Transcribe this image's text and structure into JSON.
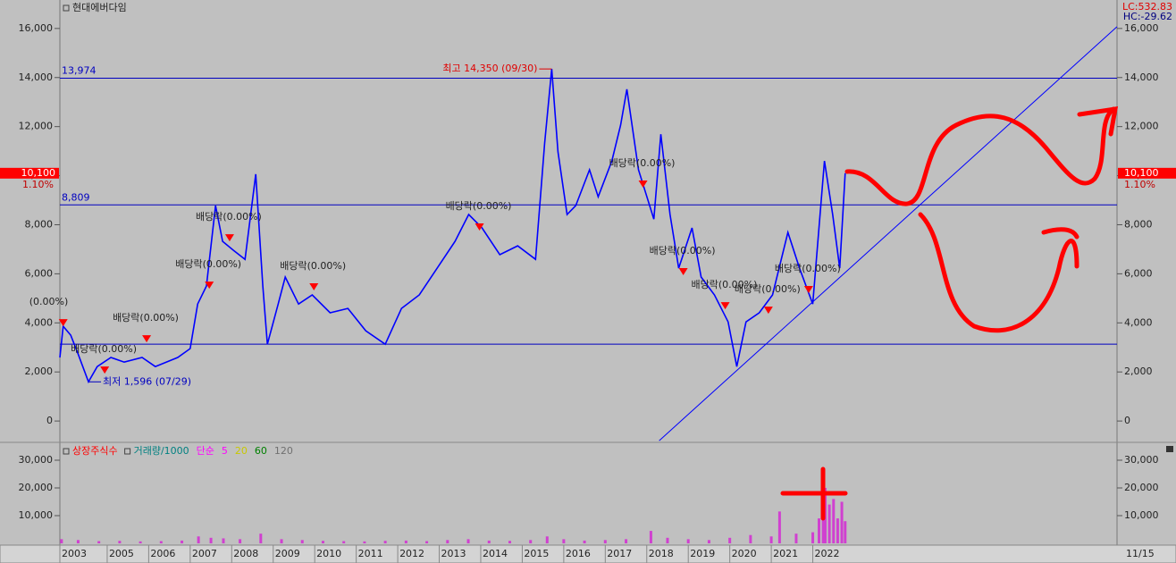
{
  "chart_data": [
    {
      "type": "line",
      "title": "현대에버다임",
      "x": [
        2003.86,
        2003.94,
        2004.12,
        2004.29,
        2004.55,
        2004.76,
        2005.09,
        2005.41,
        2005.84,
        2006.16,
        2006.7,
        2007.0,
        2007.18,
        2007.39,
        2007.61,
        2007.78,
        2008.04,
        2008.32,
        2008.58,
        2008.75,
        2008.86,
        2009.12,
        2009.29,
        2009.61,
        2009.94,
        2010.37,
        2010.8,
        2011.23,
        2011.7,
        2012.09,
        2012.52,
        2012.95,
        2013.38,
        2013.71,
        2014.03,
        2014.46,
        2014.89,
        2015.32,
        2015.54,
        2015.71,
        2015.86,
        2016.08,
        2016.29,
        2016.62,
        2016.83,
        2017.16,
        2017.37,
        2017.52,
        2017.8,
        2018.17,
        2018.34,
        2018.56,
        2018.77,
        2019.09,
        2019.31,
        2019.63,
        2019.96,
        2020.17,
        2020.39,
        2020.71,
        2021.03,
        2021.4,
        2021.68,
        2022.0,
        2022.28,
        2022.48,
        2022.65,
        2022.78
      ],
      "values": [
        2590,
        3860,
        3500,
        2770,
        1596,
        2220,
        2590,
        2400,
        2590,
        2220,
        2590,
        2950,
        4770,
        5500,
        8780,
        7320,
        6960,
        6590,
        10060,
        5500,
        3130,
        4770,
        5870,
        4770,
        5140,
        4410,
        4590,
        3680,
        3130,
        4590,
        5140,
        6230,
        7320,
        8420,
        7870,
        6780,
        7140,
        6590,
        11330,
        14350,
        10970,
        8420,
        8780,
        10240,
        9140,
        10600,
        12060,
        13520,
        10240,
        8230,
        11690,
        8420,
        6230,
        7870,
        5870,
        5140,
        4040,
        2220,
        4040,
        4410,
        5140,
        7690,
        6230,
        4770,
        10600,
        8420,
        6230,
        10100
      ],
      "color": "#0000ff",
      "xlim": [
        2003.86,
        2029.33
      ],
      "ylim": [
        -870,
        17160
      ],
      "yticks": [
        0,
        {
          "value": 2000,
          "label": "2,000"
        },
        {
          "value": 4000,
          "label": "4,000"
        },
        {
          "value": 6000,
          "label": "6,000"
        },
        {
          "value": 8000,
          "label": "8,000"
        },
        {
          "value": 10000,
          "label": "10,000"
        },
        {
          "value": 12000,
          "label": "12,000"
        },
        {
          "value": 14000,
          "label": "14,000"
        },
        {
          "value": 16000,
          "label": "16,000"
        }
      ],
      "xticks": [
        {
          "value": 2003.86,
          "label": "2003"
        },
        2005,
        2006,
        2007,
        2008,
        2009,
        2010,
        2011,
        2012,
        2013,
        2014,
        2015,
        2016,
        2017,
        2018,
        2019,
        2020,
        2021,
        2022
      ],
      "levels": [
        {
          "value": 13974,
          "label": "13,974"
        },
        {
          "value": 8809,
          "label": "8,809"
        }
      ],
      "support_level": 3133,
      "trendline": {
        "x": [
          2018.3,
          2029.33
        ],
        "values": [
          -800,
          16070
        ]
      },
      "high_label": "최고 14,350 (09/30)",
      "low_label": "최저 1,596 (07/29)",
      "last_price": {
        "value": 10100,
        "label": "10,100"
      },
      "change_label": "1.10%",
      "lc_label": "LC:532.83",
      "hc_label": "HC:-29.62",
      "date_label": "11/15",
      "markers": [
        {
          "x": 2003.94,
          "value": 3970,
          "label": "(0.00%)"
        },
        {
          "x": 2004.94,
          "value": 2040,
          "label": "배당락(0.00%)"
        },
        {
          "x": 2005.95,
          "value": 3315,
          "label": "배당락(0.00%)"
        },
        {
          "x": 2007.46,
          "value": 5500,
          "label": "배당락(0.00%)"
        },
        {
          "x": 2007.95,
          "value": 7430,
          "label": "배당락(0.00%)"
        },
        {
          "x": 2009.98,
          "value": 5430,
          "label": "배당락(0.00%)"
        },
        {
          "x": 2013.97,
          "value": 7870,
          "label": "배당락(0.00%)"
        },
        {
          "x": 2017.91,
          "value": 9620,
          "label": "배당락(0.00%)"
        },
        {
          "x": 2018.88,
          "value": 6050,
          "label": "배당락(0.00%)"
        },
        {
          "x": 2019.89,
          "value": 4660,
          "label": "배당락(0.00%)"
        },
        {
          "x": 2020.93,
          "value": 4480,
          "label": "배당락(0.00%)"
        },
        {
          "x": 2021.9,
          "value": 5320,
          "label": "배당락(0.00%)"
        }
      ]
    },
    {
      "type": "bar",
      "legend": [
        {
          "name": "상장주식수",
          "color": "#ff0000"
        },
        {
          "name": "거래량/1000",
          "color": "#008080"
        },
        {
          "name": "단순",
          "color": "#ff00ff"
        },
        {
          "name": "5",
          "color": "#ff00ff"
        },
        {
          "name": "20",
          "color": "#c8c800"
        },
        {
          "name": "60",
          "color": "#008000"
        },
        {
          "name": "120",
          "color": "#707070"
        }
      ],
      "x": [
        2003.9,
        2004.3,
        2004.8,
        2005.3,
        2005.8,
        2006.3,
        2006.8,
        2007.2,
        2007.5,
        2007.8,
        2008.2,
        2008.7,
        2009.2,
        2009.7,
        2010.2,
        2010.7,
        2011.2,
        2011.7,
        2012.2,
        2012.7,
        2013.2,
        2013.7,
        2014.2,
        2014.7,
        2015.2,
        2015.6,
        2016.0,
        2016.5,
        2017.0,
        2017.5,
        2018.1,
        2018.5,
        2019.0,
        2019.5,
        2020.0,
        2020.5,
        2021.0,
        2021.2,
        2021.6,
        2022.0,
        2022.15,
        2022.25,
        2022.3,
        2022.4,
        2022.5,
        2022.6,
        2022.7,
        2022.78
      ],
      "values": [
        1500,
        1200,
        800,
        900,
        700,
        800,
        1000,
        2500,
        2000,
        1800,
        1500,
        3500,
        1500,
        1200,
        900,
        800,
        700,
        900,
        1000,
        800,
        1200,
        1500,
        1000,
        900,
        1200,
        2500,
        1500,
        1000,
        1200,
        1500,
        4500,
        2000,
        1500,
        1200,
        2000,
        3000,
        2500,
        11500,
        3500,
        4000,
        9000,
        27000,
        20000,
        14000,
        16000,
        9000,
        15000,
        8000
      ],
      "color": "#d040d0",
      "ylim": [
        0,
        35800
      ],
      "yticks": [
        {
          "value": 10000,
          "label": "10,000"
        },
        {
          "value": 20000,
          "label": "20,000"
        },
        {
          "value": 30000,
          "label": "30,000"
        }
      ]
    }
  ]
}
